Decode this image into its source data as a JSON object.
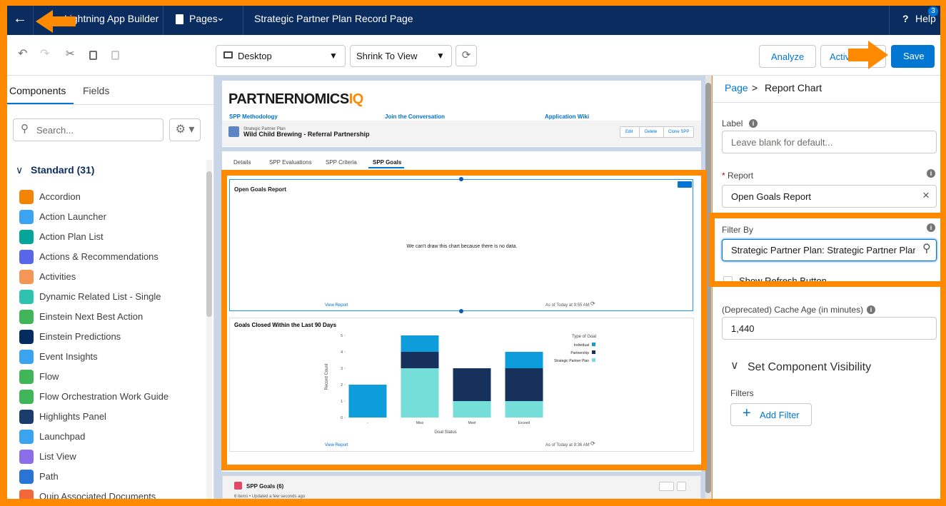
{
  "top_bar": {
    "app": "Lightning App Builder",
    "pages": "Pages",
    "page_name": "Strategic Partner Plan Record Page",
    "help": "Help",
    "badge": "3"
  },
  "toolbar": {
    "form_factor": "Desktop",
    "view": "Shrink To View",
    "analyze": "Analyze",
    "activation": "Activation",
    "save": "Save"
  },
  "left_panel": {
    "tabs": [
      "Components",
      "Fields"
    ],
    "search": "Search...",
    "section": "Standard (31)",
    "components": [
      "Accordion",
      "Action Launcher",
      "Action Plan List",
      "Actions & Recommendations",
      "Activities",
      "Dynamic Related List - Single",
      "Einstein Next Best Action",
      "Einstein Predictions",
      "Event Insights",
      "Flow",
      "Flow Orchestration Work Guide",
      "Highlights Panel",
      "Launchpad",
      "List View",
      "Path",
      "Quip Associated Documents"
    ]
  },
  "canvas": {
    "logo": "PARTNERNOMICS",
    "logo_suffix": "IQ",
    "links": [
      "SPP Methodology",
      "Join the Conversation",
      "Application Wiki"
    ],
    "record_type": "Strategic Partner Plan",
    "record_name": "Wild Child Brewing - Referral Partnership",
    "actions": [
      "Edit",
      "Delete",
      "Clone SPP"
    ],
    "tabs": [
      "Details",
      "SPP Evaluations",
      "SPP Criteria",
      "SPP Goals"
    ],
    "report1": {
      "title": "Open Goals Report",
      "message": "We can't draw this chart because there is no data.",
      "link": "View Report",
      "timestamp": "As of Today at 9:55 AM"
    },
    "report2": {
      "link": "View Report",
      "timestamp": "As of Today at 9:36 AM"
    },
    "related": {
      "title": "SPP Goals (6)",
      "subtitle": "6 items • Updated a few seconds ago"
    }
  },
  "chart_data": {
    "type": "bar",
    "stacked": true,
    "title": "Goals Closed Within the Last 90 Days",
    "x_label": "Goal Status",
    "y_label": "Record Count",
    "categories": [
      "-",
      "Miss",
      "Meet",
      "Exceed"
    ],
    "ylim": [
      0,
      5
    ],
    "yticks": [
      0,
      1,
      2,
      3,
      4,
      5
    ],
    "legend_title": "Type of Goal",
    "series": [
      {
        "name": "Individual",
        "color": "#0d9dda",
        "values": [
          2,
          1,
          0,
          1
        ]
      },
      {
        "name": "Partnership",
        "color": "#16325c",
        "values": [
          0,
          1,
          2,
          2
        ]
      },
      {
        "name": "Strategic Partner Plan",
        "color": "#76ded9",
        "values": [
          0,
          3,
          1,
          1
        ]
      }
    ]
  },
  "right_panel": {
    "breadcrumb": [
      "Page",
      ">",
      "Report Chart"
    ],
    "label": "Label",
    "label_placeholder": "Leave blank for default...",
    "report_label": "Report",
    "report_value": "Open Goals Report",
    "filter_label": "Filter By",
    "filter_value": "Strategic Partner Plan: Strategic Partner Plan",
    "refresh": "Show Refresh Button",
    "cache_label": "(Deprecated) Cache Age (in minutes)",
    "cache_value": "1,440",
    "visibility": "Set Component Visibility",
    "filters": "Filters",
    "add_filter": "Add Filter"
  }
}
